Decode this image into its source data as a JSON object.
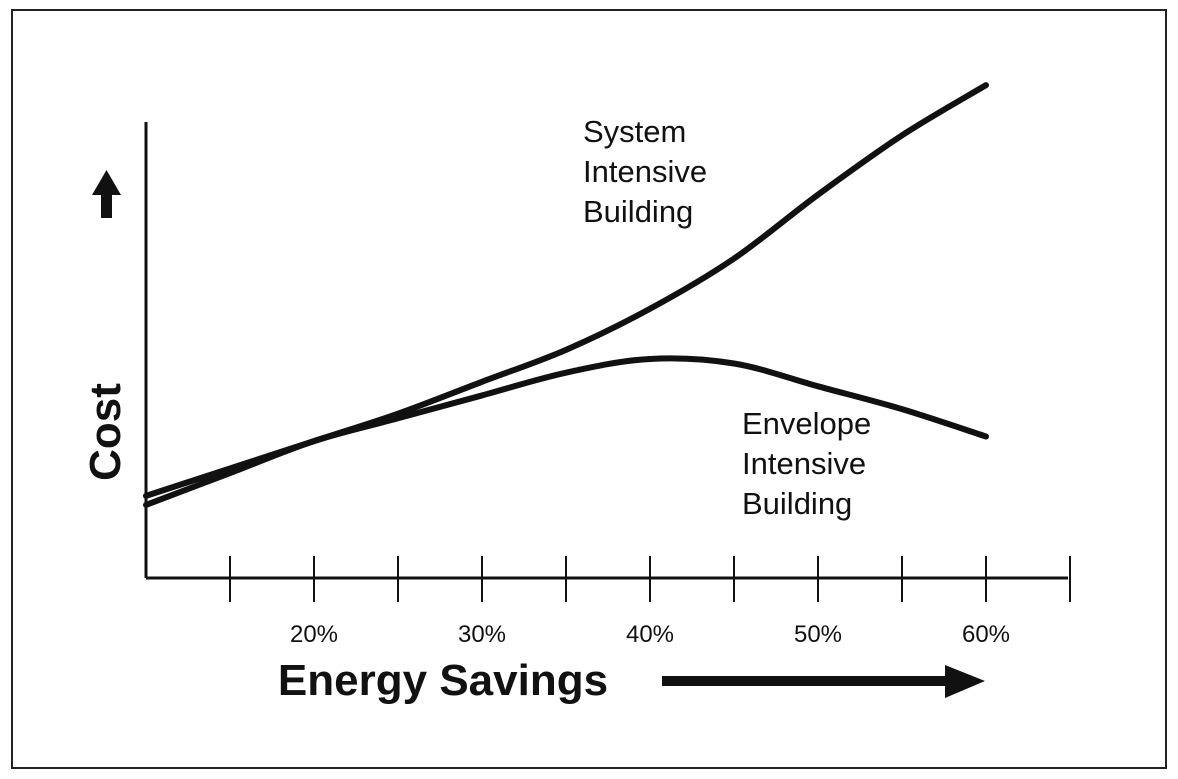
{
  "chart_data": {
    "type": "line",
    "xlabel": "Energy Savings",
    "ylabel": "Cost",
    "x": [
      10,
      15,
      20,
      25,
      30,
      35,
      40,
      45,
      50,
      55,
      60
    ],
    "series": [
      {
        "name": "System Intensive Building",
        "color": "#111111",
        "values": [
          18,
          24,
          30,
          36,
          43,
          50,
          59,
          70,
          84,
          97,
          108
        ]
      },
      {
        "name": "Envelope Intensive Building",
        "color": "#111111",
        "values": [
          16,
          23,
          30,
          35,
          40,
          45,
          48,
          47,
          42,
          37,
          31
        ]
      }
    ],
    "xlim": [
      10,
      65
    ],
    "xticks": [
      {
        "value": 20,
        "label": "20%"
      },
      {
        "value": 30,
        "label": "30%"
      },
      {
        "value": 40,
        "label": "40%"
      },
      {
        "value": 50,
        "label": "50%"
      },
      {
        "value": 60,
        "label": "60%"
      }
    ],
    "xticks_minor": [
      15,
      25,
      35,
      45,
      55,
      65
    ],
    "ylim": [
      0,
      110
    ]
  }
}
